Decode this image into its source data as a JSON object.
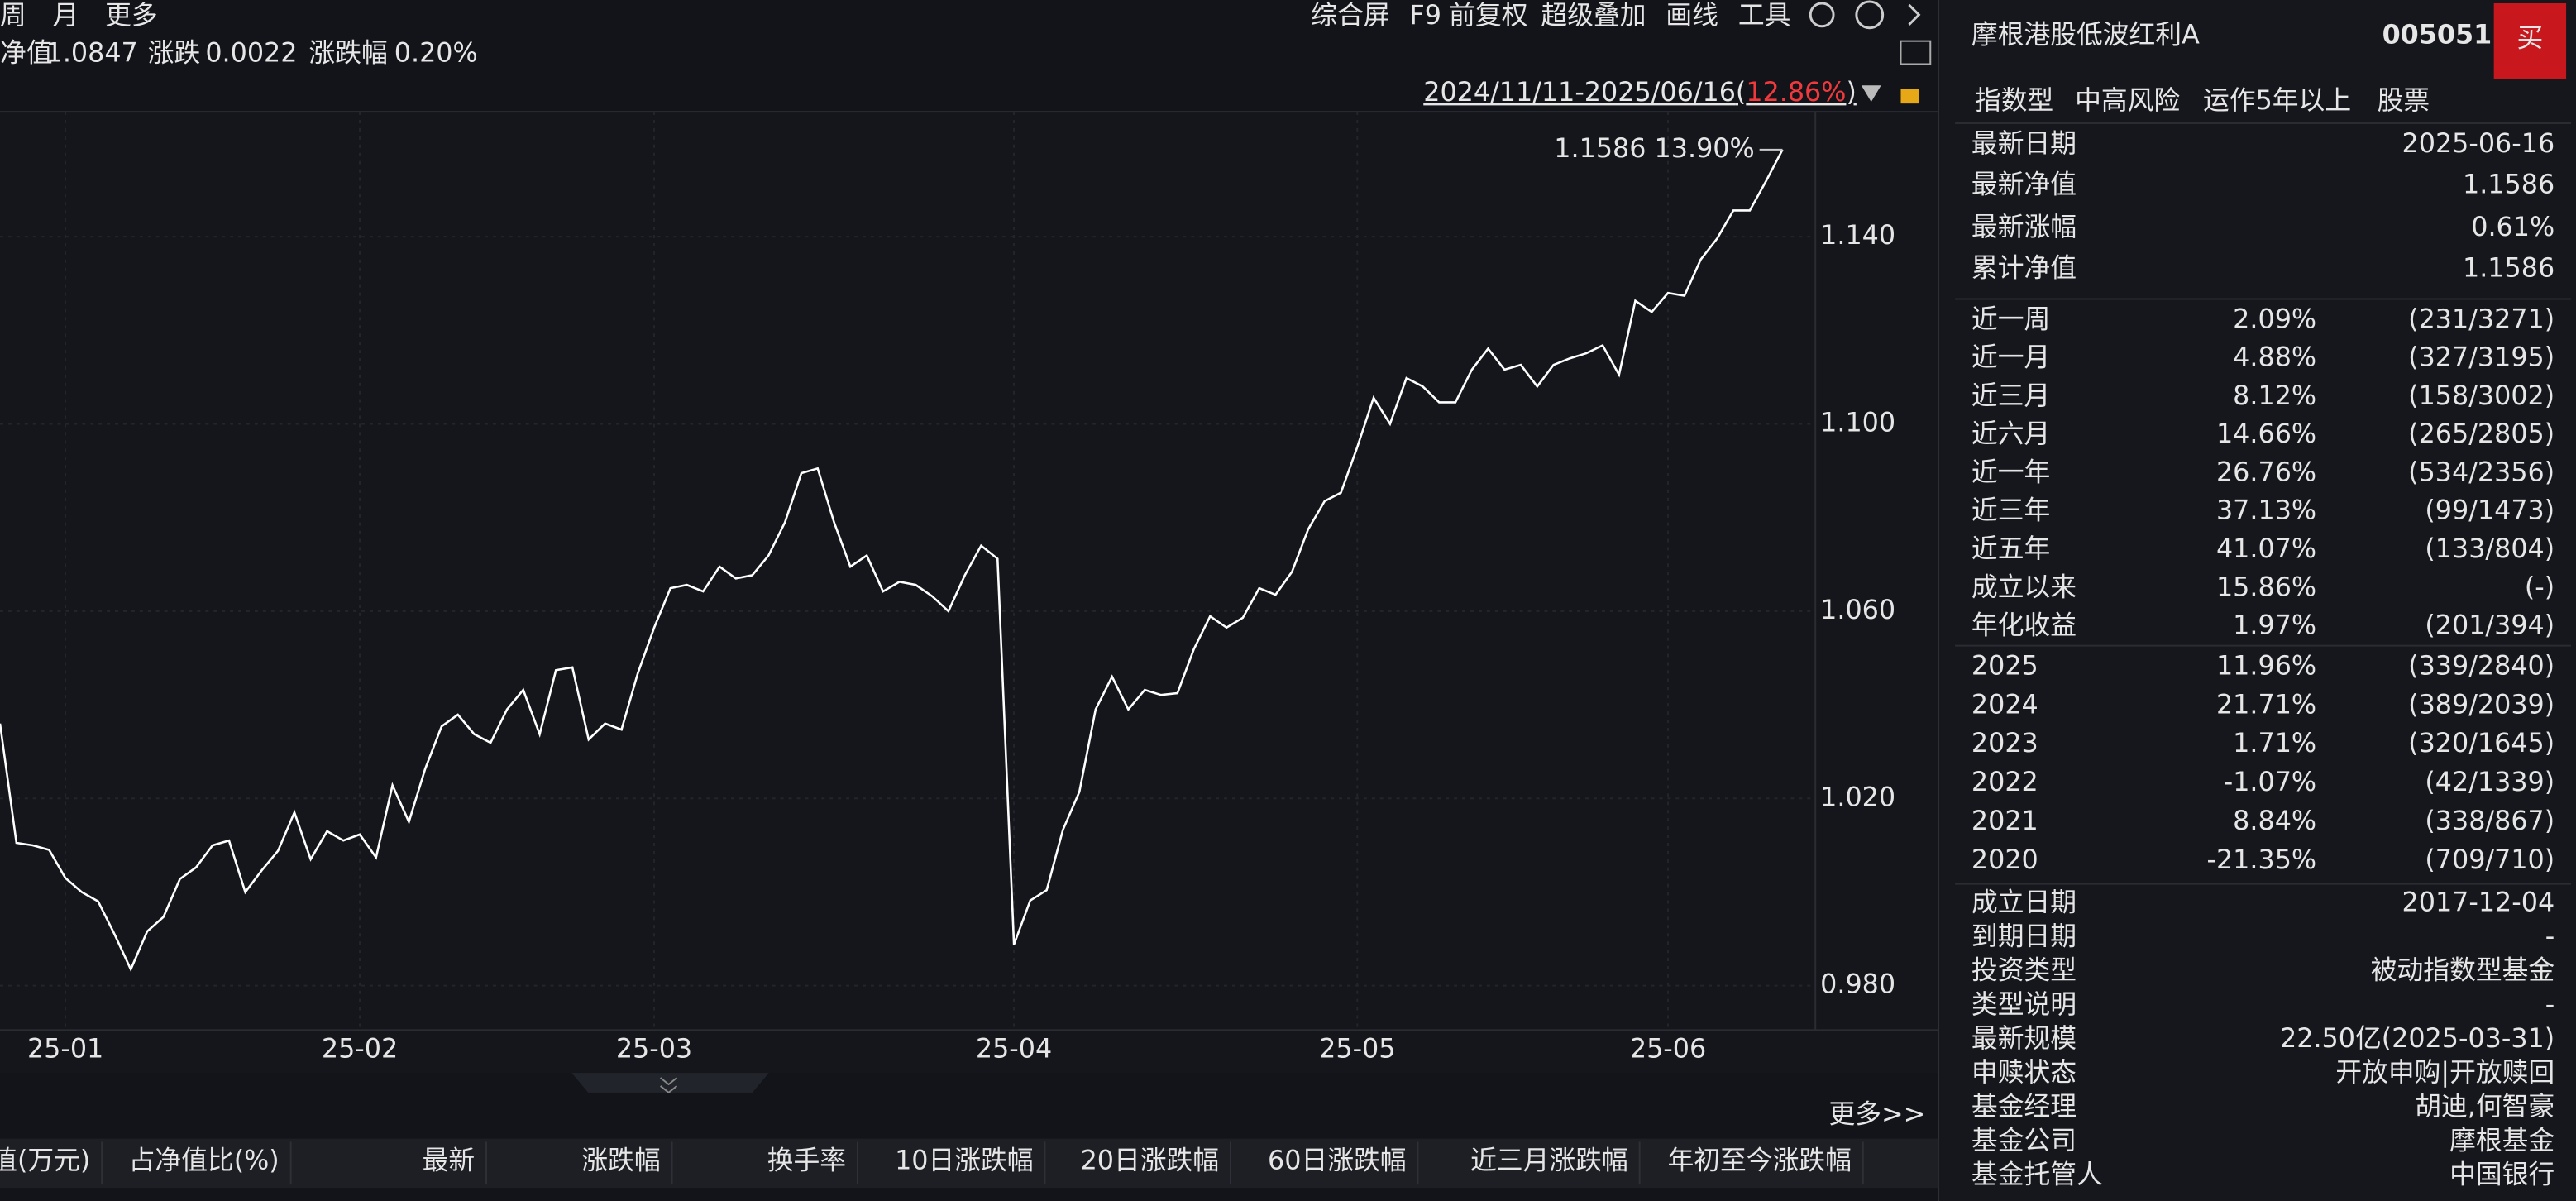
{
  "toolbar": {
    "left": [
      "周",
      "月",
      "更多"
    ],
    "right": [
      "综合屏",
      "F9",
      "前复权",
      "超级叠加",
      "画线",
      "工具"
    ]
  },
  "quote": [
    [
      "净值",
      "1.0847"
    ],
    [
      "涨跌",
      "0.0022"
    ],
    [
      "涨跌幅",
      "0.20%"
    ]
  ],
  "range": {
    "dates": "2024/11/11-2025/06/16",
    "open": "(",
    "change": "12.86%",
    "close": ")"
  },
  "chart_data": {
    "type": "line",
    "color": "#ffffff",
    "grid": true,
    "annotation": "1.1586 13.90%",
    "categories": [
      null,
      null,
      null,
      null,
      "25-01",
      null,
      null,
      null,
      null,
      null,
      null,
      null,
      null,
      null,
      null,
      null,
      null,
      null,
      null,
      null,
      null,
      null,
      "25-02",
      null,
      null,
      null,
      null,
      null,
      null,
      null,
      null,
      null,
      null,
      null,
      null,
      null,
      null,
      null,
      null,
      null,
      "25-03",
      null,
      null,
      null,
      null,
      null,
      null,
      null,
      null,
      null,
      null,
      null,
      null,
      null,
      null,
      null,
      null,
      null,
      null,
      null,
      null,
      null,
      "25-04",
      null,
      null,
      null,
      null,
      null,
      null,
      null,
      null,
      null,
      null,
      null,
      null,
      null,
      null,
      null,
      null,
      null,
      null,
      null,
      null,
      "25-05",
      null,
      null,
      null,
      null,
      null,
      null,
      null,
      null,
      null,
      null,
      null,
      null,
      null,
      null,
      null,
      null,
      null,
      null,
      "25-06",
      null,
      null,
      null,
      null,
      null,
      null,
      null
    ],
    "values": [
      1.036,
      1.0105,
      1.01,
      1.009,
      1.003,
      1.0,
      0.998,
      0.991,
      0.9835,
      0.9916,
      0.9947,
      1.0028,
      1.0053,
      1.01,
      1.011,
      1.0,
      1.0046,
      1.0088,
      1.017,
      1.007,
      1.013,
      1.011,
      1.0123,
      1.0074,
      1.0228,
      1.015,
      1.0263,
      1.0354,
      1.0379,
      1.0337,
      1.0319,
      1.039,
      1.0432,
      1.0337,
      1.0474,
      1.048,
      1.0326,
      1.036,
      1.0347,
      1.0467,
      1.0565,
      1.0649,
      1.0656,
      1.0642,
      1.0695,
      1.067,
      1.0677,
      1.0719,
      1.079,
      1.0895,
      1.0905,
      1.079,
      1.0695,
      1.0719,
      1.0642,
      1.0663,
      1.0656,
      1.0632,
      1.06,
      1.0677,
      1.074,
      1.0712,
      0.9888,
      0.9982,
      1.0004,
      1.0133,
      1.0214,
      1.039,
      1.046,
      1.039,
      1.0432,
      1.0421,
      1.0425,
      1.0519,
      1.0589,
      1.0565,
      1.0586,
      1.0649,
      1.0635,
      1.0684,
      1.0775,
      1.0835,
      1.0853,
      1.0951,
      1.1056,
      1.1,
      1.1098,
      1.108,
      1.1046,
      1.1046,
      1.1116,
      1.1161,
      1.1116,
      1.1126,
      1.108,
      1.1126,
      1.114,
      1.1151,
      1.1168,
      1.1105,
      1.1263,
      1.1239,
      1.128,
      1.1274,
      1.1351,
      1.1396,
      1.1456,
      1.1456,
      1.1519,
      1.1586
    ],
    "ylim": [
      0.9705,
      1.1667
    ],
    "yticks": [
      {
        "value": 0.98,
        "label": "0.980"
      },
      {
        "value": 1.02,
        "label": "1.020"
      },
      {
        "value": 1.06,
        "label": "1.060"
      },
      {
        "value": 1.1,
        "label": "1.100"
      },
      {
        "value": 1.14,
        "label": "1.140"
      }
    ]
  },
  "more": "更多>>",
  "table": {
    "headers": [
      "值(万元)",
      "占净值比(%)",
      "最新",
      "涨跌幅",
      "换手率",
      "10日涨跌幅",
      "20日涨跌幅",
      "60日涨跌幅",
      "近三月涨跌幅",
      "年初至今涨跌幅"
    ]
  },
  "panel": {
    "name": "摩根港股低波红利A",
    "code": "005051",
    "buy": "买",
    "tags": [
      "指数型",
      "中高风险",
      "运作5年以上",
      "股票"
    ],
    "summary": [
      [
        "最新日期",
        "2025-06-16"
      ],
      [
        "最新净值",
        "1.1586"
      ],
      [
        "最新涨幅",
        "0.61%"
      ],
      [
        "累计净值",
        "1.1586"
      ]
    ],
    "returns": [
      [
        "近一周",
        "2.09%",
        "(231/3271)"
      ],
      [
        "近一月",
        "4.88%",
        "(327/3195)"
      ],
      [
        "近三月",
        "8.12%",
        "(158/3002)"
      ],
      [
        "近六月",
        "14.66%",
        "(265/2805)"
      ],
      [
        "近一年",
        "26.76%",
        "(534/2356)"
      ],
      [
        "近三年",
        "37.13%",
        "(99/1473)"
      ],
      [
        "近五年",
        "41.07%",
        "(133/804)"
      ],
      [
        "成立以来",
        "15.86%",
        "(-)"
      ],
      [
        "年化收益",
        "1.97%",
        "(201/394)"
      ]
    ],
    "years": [
      [
        "2025",
        "11.96%",
        "(339/2840)"
      ],
      [
        "2024",
        "21.71%",
        "(389/2039)"
      ],
      [
        "2023",
        "1.71%",
        "(320/1645)"
      ],
      [
        "2022",
        "-1.07%",
        "(42/1339)"
      ],
      [
        "2021",
        "8.84%",
        "(338/867)"
      ],
      [
        "2020",
        "-21.35%",
        "(709/710)"
      ]
    ],
    "details": [
      [
        "成立日期",
        "2017-12-04"
      ],
      [
        "到期日期",
        "-"
      ],
      [
        "投资类型",
        "被动指数型基金"
      ],
      [
        "类型说明",
        "-"
      ],
      [
        "最新规模",
        "22.50亿(2025-03-31)"
      ],
      [
        "申赎状态",
        "开放申购|开放赎回"
      ],
      [
        "基金经理",
        "胡迪,何智豪"
      ],
      [
        "基金公司",
        "摩根基金"
      ],
      [
        "基金托管人",
        "中国银行"
      ]
    ]
  }
}
